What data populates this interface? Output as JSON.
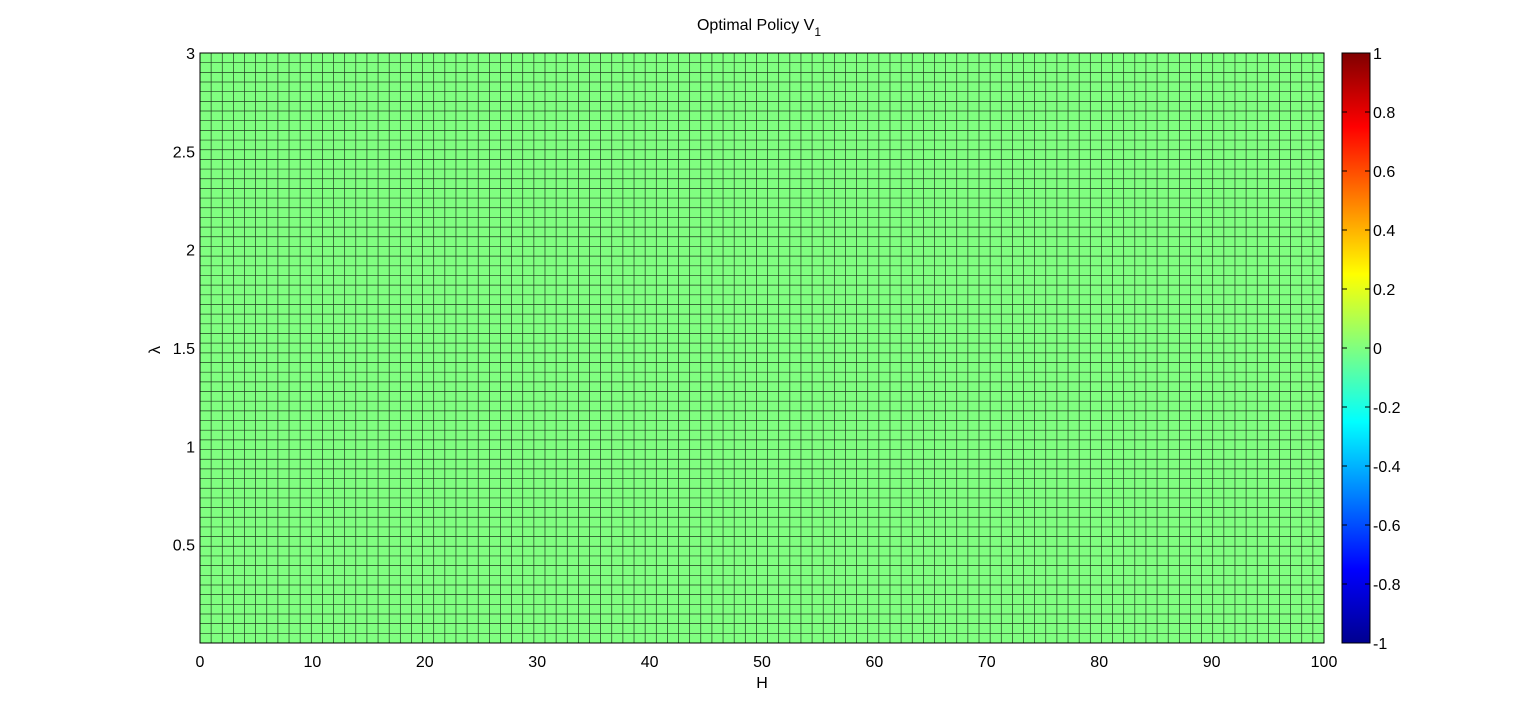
{
  "chart_data": {
    "type": "heatmap",
    "title": "Optimal Policy V",
    "title_subscript": "1",
    "xlabel": "H",
    "ylabel": "λ",
    "xlim": [
      0,
      100
    ],
    "ylim": [
      0,
      3
    ],
    "x_ticks": [
      "0",
      "10",
      "20",
      "30",
      "40",
      "50",
      "60",
      "70",
      "80",
      "90",
      "100"
    ],
    "y_ticks": [
      "0.5",
      "1",
      "1.5",
      "2",
      "2.5",
      "3"
    ],
    "grid_columns": 101,
    "grid_rows": 61,
    "uniform_value": 0,
    "cell_color": "#80ff80",
    "edge_color": "#000000",
    "colorbar": {
      "colormap": "jet",
      "range": [
        -1,
        1
      ],
      "ticks": [
        "1",
        "0.8",
        "0.6",
        "0.4",
        "0.2",
        "0",
        "-0.2",
        "-0.4",
        "-0.6",
        "-0.8",
        "-1"
      ]
    }
  }
}
